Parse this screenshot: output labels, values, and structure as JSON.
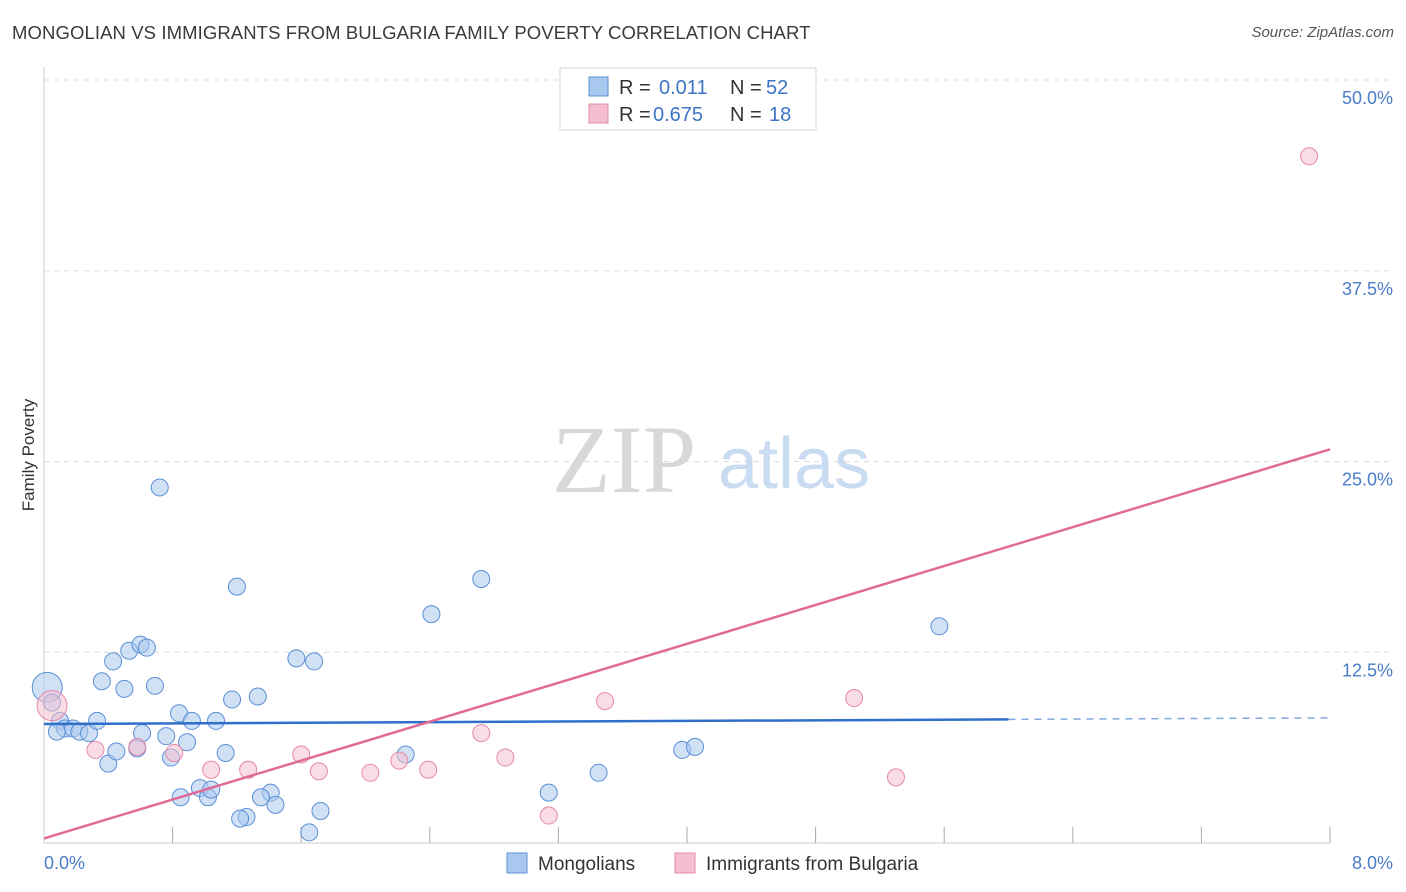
{
  "title": "MONGOLIAN VS IMMIGRANTS FROM BULGARIA FAMILY POVERTY CORRELATION CHART",
  "source": "Source: ZipAtlas.com",
  "watermark": {
    "part1": "ZIP",
    "part2": "atlas"
  },
  "colors": {
    "blue_fill": "#a9c8ef",
    "blue_stroke": "#5b8fd6",
    "blue_line": "#2f6fc9",
    "pink_fill": "#f5bfd0",
    "pink_stroke": "#e48aa9",
    "pink_line": "#e06a97",
    "grid": "#dcdcdc",
    "tick_text": "#4a7cc9"
  },
  "legend": {
    "series1": {
      "r_label": "R =",
      "r_value": "0.011",
      "n_label": "N =",
      "n_value": "52"
    },
    "series2": {
      "r_label": "R =",
      "r_value": "0.675",
      "n_label": "N =",
      "n_value": "18"
    }
  },
  "chart_data": {
    "type": "scatter",
    "title": "MONGOLIAN VS IMMIGRANTS FROM BULGARIA FAMILY POVERTY CORRELATION CHART",
    "xlabel": "",
    "ylabel": "Family Poverty",
    "xlim": [
      0,
      8
    ],
    "ylim": [
      0,
      50
    ],
    "x_tick_labels": [
      "0.0%",
      "8.0%"
    ],
    "y_ticks": [
      12.5,
      25.0,
      37.5,
      50.0
    ],
    "y_tick_labels": [
      "12.5%",
      "25.0%",
      "37.5%",
      "50.0%"
    ],
    "grid": true,
    "legend_position": "top-center",
    "series": [
      {
        "name": "Mongolians",
        "color": "blue",
        "points": [
          [
            0.02,
            10.2
          ],
          [
            0.05,
            9.2
          ],
          [
            0.1,
            8.0
          ],
          [
            0.13,
            7.5
          ],
          [
            0.18,
            7.5
          ],
          [
            0.22,
            7.3
          ],
          [
            0.28,
            7.2
          ],
          [
            0.33,
            8.0
          ],
          [
            0.08,
            7.3
          ],
          [
            0.36,
            10.6
          ],
          [
            0.43,
            11.9
          ],
          [
            0.5,
            10.1
          ],
          [
            0.53,
            12.6
          ],
          [
            0.6,
            13.0
          ],
          [
            0.64,
            12.8
          ],
          [
            0.69,
            10.3
          ],
          [
            0.72,
            23.3
          ],
          [
            0.76,
            7.0
          ],
          [
            0.79,
            5.6
          ],
          [
            0.84,
            8.5
          ],
          [
            0.89,
            6.6
          ],
          [
            0.92,
            8.0
          ],
          [
            0.97,
            3.6
          ],
          [
            1.02,
            3.0
          ],
          [
            1.04,
            3.5
          ],
          [
            1.07,
            8.0
          ],
          [
            1.13,
            5.9
          ],
          [
            1.17,
            9.4
          ],
          [
            1.2,
            16.8
          ],
          [
            1.26,
            1.7
          ],
          [
            1.33,
            9.6
          ],
          [
            1.41,
            3.3
          ],
          [
            1.44,
            2.5
          ],
          [
            1.57,
            12.1
          ],
          [
            1.65,
            0.7
          ],
          [
            1.68,
            11.9
          ],
          [
            1.72,
            2.1
          ],
          [
            0.4,
            5.2
          ],
          [
            0.45,
            6.0
          ],
          [
            0.58,
            6.2
          ],
          [
            0.61,
            7.2
          ],
          [
            0.85,
            3.0
          ],
          [
            2.25,
            5.8
          ],
          [
            2.41,
            15.0
          ],
          [
            2.72,
            17.3
          ],
          [
            3.14,
            3.3
          ],
          [
            3.45,
            4.6
          ],
          [
            3.97,
            6.1
          ],
          [
            4.05,
            6.3
          ],
          [
            5.57,
            14.2
          ],
          [
            1.35,
            3.0
          ],
          [
            1.22,
            1.6
          ]
        ]
      },
      {
        "name": "Immigrants from Bulgaria",
        "color": "pink",
        "points": [
          [
            0.05,
            9.0
          ],
          [
            0.32,
            6.1
          ],
          [
            0.58,
            6.3
          ],
          [
            0.81,
            5.9
          ],
          [
            1.04,
            4.8
          ],
          [
            1.27,
            4.8
          ],
          [
            1.6,
            5.8
          ],
          [
            1.71,
            4.7
          ],
          [
            2.03,
            4.6
          ],
          [
            2.21,
            5.4
          ],
          [
            2.39,
            4.8
          ],
          [
            2.72,
            7.2
          ],
          [
            2.87,
            5.6
          ],
          [
            3.14,
            1.8
          ],
          [
            3.49,
            9.3
          ],
          [
            5.04,
            9.5
          ],
          [
            5.3,
            4.3
          ],
          [
            7.87,
            45.0
          ]
        ]
      }
    ],
    "trend_lines": [
      {
        "series": "Mongolians",
        "from": [
          0,
          7.8
        ],
        "to": [
          6.0,
          8.1
        ],
        "dashed_to": [
          8.0,
          8.2
        ]
      },
      {
        "series": "Immigrants from Bulgaria",
        "from": [
          0,
          0.3
        ],
        "to": [
          8.0,
          25.8
        ]
      }
    ]
  }
}
